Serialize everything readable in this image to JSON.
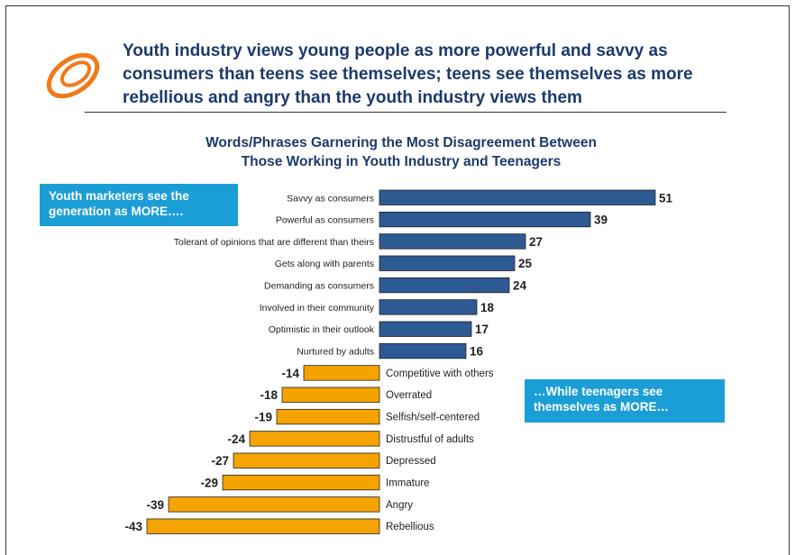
{
  "header": {
    "headline": "Youth industry views young people as more powerful and savvy as\nconsumers than teens see themselves; teens see themselves as more\nrebellious and angry than the youth industry views them"
  },
  "callouts": {
    "left": "Youth marketers see the\ngeneration as MORE….",
    "right": "…While teenagers see\nthemselves as MORE…"
  },
  "colors": {
    "positive_bar": "#2e5a94",
    "negative_bar": "#f5a300",
    "callout": "#1b9ed6",
    "headline": "#1c3a6b",
    "logo": "#f07a1a"
  },
  "chart_data": {
    "type": "bar",
    "orientation": "horizontal",
    "title": "Words/Phrases Garnering the Most Disagreement Between\nThose Working in Youth Industry and Teenagers",
    "categories": [
      "Savvy as consumers",
      "Powerful as consumers",
      "Tolerant of opinions that are different than theirs",
      "Gets along with parents",
      "Demanding as consumers",
      "Involved in their community",
      "Optimistic in their outlook",
      "Nurtured by adults",
      "Competitive with others",
      "Overrated",
      "Selfish/self-centered",
      "Distrustful of adults",
      "Depressed",
      "Immature",
      "Angry",
      "Rebellious"
    ],
    "values": [
      51,
      39,
      27,
      25,
      24,
      18,
      17,
      16,
      -14,
      -18,
      -19,
      -24,
      -27,
      -29,
      -39,
      -43
    ],
    "xlim": [
      -43,
      51
    ],
    "grid": false,
    "legend": "none"
  }
}
